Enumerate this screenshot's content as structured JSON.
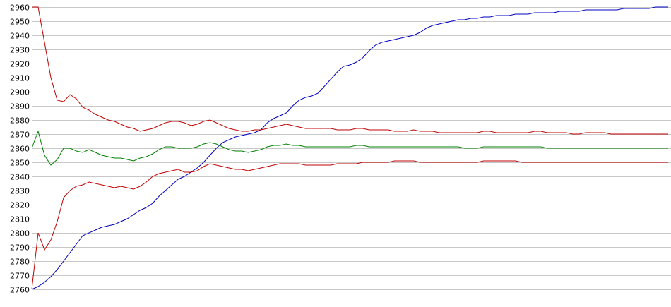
{
  "chart_data": {
    "type": "line",
    "title": "",
    "xlabel": "",
    "ylabel": "",
    "grid": true,
    "legend": "none",
    "ylim": [
      2760,
      2960
    ],
    "xlim": [
      0,
      100
    ],
    "yticks": [
      "2760",
      "2770",
      "2780",
      "2790",
      "2800",
      "2810",
      "2820",
      "2830",
      "2840",
      "2850",
      "2860",
      "2870",
      "2880",
      "2890",
      "2900",
      "2910",
      "2920",
      "2930",
      "2940",
      "2950",
      "2960"
    ],
    "x": [
      0,
      1,
      2,
      3,
      4,
      5,
      6,
      7,
      8,
      9,
      10,
      11,
      12,
      13,
      14,
      15,
      16,
      17,
      18,
      19,
      20,
      21,
      22,
      23,
      24,
      25,
      26,
      27,
      28,
      29,
      30,
      31,
      32,
      33,
      34,
      35,
      36,
      37,
      38,
      39,
      40,
      41,
      42,
      43,
      44,
      45,
      46,
      47,
      48,
      49,
      50,
      51,
      52,
      53,
      54,
      55,
      56,
      57,
      58,
      59,
      60,
      61,
      62,
      63,
      64,
      65,
      66,
      67,
      68,
      69,
      70,
      71,
      72,
      73,
      74,
      75,
      76,
      77,
      78,
      79,
      80,
      81,
      82,
      83,
      84,
      85,
      86,
      87,
      88,
      89,
      90,
      91,
      92,
      93,
      94,
      95,
      96,
      97,
      98,
      99,
      100
    ],
    "series": [
      {
        "color": "#0000c0",
        "values": [
          2760,
          2762,
          2765,
          2769,
          2774,
          2780,
          2786,
          2792,
          2798,
          2800,
          2802,
          2804,
          2805,
          2806,
          2808,
          2810,
          2813,
          2816,
          2818,
          2821,
          2826,
          2830,
          2834,
          2838,
          2840,
          2843,
          2846,
          2850,
          2855,
          2860,
          2864,
          2866,
          2868,
          2869,
          2870,
          2871,
          2873,
          2878,
          2881,
          2883,
          2885,
          2890,
          2894,
          2896,
          2897,
          2899,
          2904,
          2909,
          2914,
          2918,
          2919,
          2921,
          2924,
          2929,
          2933,
          2935,
          2936,
          2937,
          2938,
          2939,
          2940,
          2942,
          2945,
          2947,
          2948,
          2949,
          2950,
          2951,
          2951,
          2952,
          2952,
          2953,
          2953,
          2954,
          2954,
          2954,
          2955,
          2955,
          2955,
          2956,
          2956,
          2956,
          2956,
          2957,
          2957,
          2957,
          2957,
          2958,
          2958,
          2958,
          2958,
          2958,
          2958,
          2959,
          2959,
          2959,
          2959,
          2959,
          2960,
          2960,
          2960
        ]
      },
      {
        "color": "#c00000",
        "values": [
          2960,
          2960,
          2935,
          2910,
          2894,
          2893,
          2898,
          2895,
          2889,
          2887,
          2884,
          2882,
          2880,
          2879,
          2877,
          2875,
          2874,
          2872,
          2873,
          2874,
          2876,
          2878,
          2879,
          2879,
          2878,
          2876,
          2877,
          2879,
          2880,
          2878,
          2876,
          2874,
          2873,
          2872,
          2872,
          2873,
          2873,
          2874,
          2875,
          2876,
          2877,
          2876,
          2875,
          2874,
          2874,
          2874,
          2874,
          2874,
          2873,
          2873,
          2873,
          2874,
          2874,
          2873,
          2873,
          2873,
          2873,
          2872,
          2872,
          2872,
          2873,
          2872,
          2872,
          2872,
          2871,
          2871,
          2871,
          2871,
          2871,
          2871,
          2871,
          2872,
          2872,
          2871,
          2871,
          2871,
          2871,
          2871,
          2871,
          2872,
          2872,
          2871,
          2871,
          2871,
          2871,
          2870,
          2870,
          2871,
          2871,
          2871,
          2871,
          2870,
          2870,
          2870,
          2870,
          2870,
          2870,
          2870,
          2870,
          2870,
          2870
        ]
      },
      {
        "color": "#008000",
        "values": [
          2860,
          2872,
          2855,
          2848,
          2852,
          2860,
          2860,
          2858,
          2857,
          2859,
          2857,
          2855,
          2854,
          2853,
          2853,
          2852,
          2851,
          2853,
          2854,
          2856,
          2859,
          2861,
          2861,
          2860,
          2860,
          2860,
          2861,
          2863,
          2864,
          2863,
          2861,
          2859,
          2858,
          2858,
          2857,
          2858,
          2859,
          2861,
          2862,
          2862,
          2863,
          2862,
          2862,
          2861,
          2861,
          2861,
          2861,
          2861,
          2861,
          2861,
          2861,
          2862,
          2862,
          2861,
          2861,
          2861,
          2861,
          2861,
          2861,
          2861,
          2861,
          2861,
          2861,
          2861,
          2861,
          2861,
          2861,
          2861,
          2860,
          2860,
          2860,
          2861,
          2861,
          2861,
          2861,
          2861,
          2861,
          2861,
          2861,
          2861,
          2861,
          2860,
          2860,
          2860,
          2860,
          2860,
          2860,
          2860,
          2860,
          2860,
          2860,
          2860,
          2860,
          2860,
          2860,
          2860,
          2860,
          2860,
          2860,
          2860,
          2860
        ]
      },
      {
        "color": "#c00000",
        "values": [
          2760,
          2800,
          2788,
          2795,
          2808,
          2825,
          2830,
          2833,
          2834,
          2836,
          2835,
          2834,
          2833,
          2832,
          2833,
          2832,
          2831,
          2833,
          2836,
          2840,
          2842,
          2843,
          2844,
          2845,
          2843,
          2843,
          2844,
          2847,
          2849,
          2848,
          2847,
          2846,
          2845,
          2845,
          2844,
          2845,
          2846,
          2847,
          2848,
          2849,
          2849,
          2849,
          2849,
          2848,
          2848,
          2848,
          2848,
          2848,
          2849,
          2849,
          2849,
          2849,
          2850,
          2850,
          2850,
          2850,
          2850,
          2851,
          2851,
          2851,
          2851,
          2850,
          2850,
          2850,
          2850,
          2850,
          2850,
          2850,
          2850,
          2850,
          2850,
          2851,
          2851,
          2851,
          2851,
          2851,
          2851,
          2850,
          2850,
          2850,
          2850,
          2850,
          2850,
          2850,
          2850,
          2850,
          2850,
          2850,
          2850,
          2850,
          2850,
          2850,
          2850,
          2850,
          2850,
          2850,
          2850,
          2850,
          2850,
          2850,
          2850
        ]
      }
    ]
  }
}
